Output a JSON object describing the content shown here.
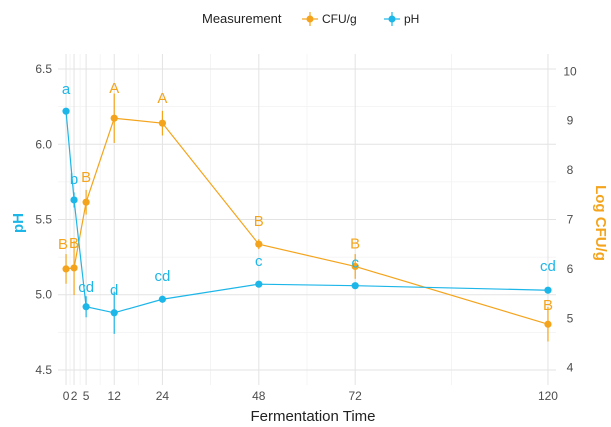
{
  "chart_data": {
    "type": "line",
    "title": "",
    "xlabel": "Fermentation Time",
    "ylabel_left": "pH",
    "ylabel_right": "Log CFU/g",
    "x_ticks": [
      0,
      2,
      5,
      12,
      24,
      48,
      72,
      120
    ],
    "x_tick_labels": [
      "0",
      "2",
      "5",
      "12",
      "24",
      "48",
      "72",
      "120"
    ],
    "xlim": [
      -2,
      122
    ],
    "ylim_left": [
      4.4,
      6.6
    ],
    "y_ticks_left": [
      4.5,
      5.0,
      5.5,
      6.0,
      6.5
    ],
    "y_tick_labels_left": [
      "4.5",
      "5.0",
      "5.5",
      "6.0",
      "6.5"
    ],
    "ylim_right": [
      3.65,
      10.35
    ],
    "y_ticks_right": [
      4,
      5,
      6,
      7,
      8,
      9,
      10
    ],
    "y_tick_labels_right": [
      "4",
      "5",
      "6",
      "7",
      "8",
      "9",
      "10"
    ],
    "grid": true,
    "legend": {
      "title": "Measurement",
      "position": "top",
      "entries": [
        "CFU/g",
        "pH"
      ]
    },
    "series": [
      {
        "name": "CFU/g",
        "axis": "right",
        "color": "#F4A41C",
        "x": [
          0,
          2,
          5,
          12,
          24,
          48,
          72,
          120
        ],
        "y": [
          6.0,
          6.02,
          7.35,
          9.05,
          8.95,
          6.5,
          6.05,
          4.88
        ],
        "error": [
          0.3,
          0.55,
          0.25,
          0.5,
          0.25,
          0.1,
          0.25,
          0.35
        ],
        "labels": [
          "B",
          "B",
          "B",
          "A",
          "A",
          "B",
          "B",
          "B"
        ]
      },
      {
        "name": "pH",
        "axis": "left",
        "color": "#1DB6E8",
        "x": [
          0,
          2,
          5,
          12,
          24,
          48,
          72,
          120
        ],
        "y": [
          6.22,
          5.63,
          4.92,
          4.88,
          4.97,
          5.07,
          5.06,
          5.03
        ],
        "error": [
          0.0,
          0.05,
          0.07,
          0.14,
          0.02,
          0.02,
          0.02,
          0.02
        ],
        "labels": [
          "a",
          "b",
          "cd",
          "d",
          "cd",
          "c",
          "c",
          "cd"
        ]
      }
    ]
  }
}
